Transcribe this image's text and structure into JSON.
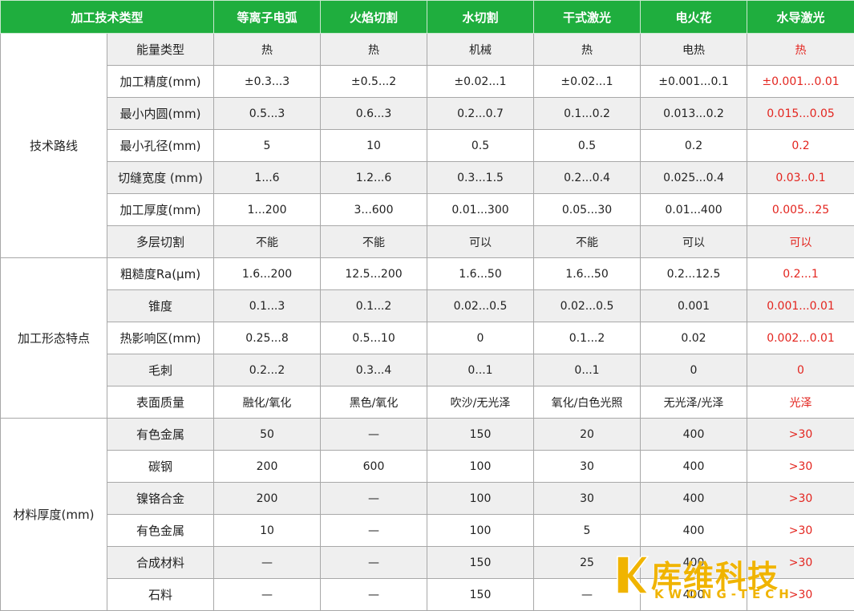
{
  "header": [
    "加工技术类型",
    "等离子电弧",
    "火焰切割",
    "水切割",
    "干式激光",
    "电火花",
    "水导激光"
  ],
  "groups": [
    {
      "label": "技术路线",
      "rows": [
        {
          "name": "能量类型",
          "values": [
            "热",
            "热",
            "机械",
            "热",
            "电热",
            "热"
          ]
        },
        {
          "name": "加工精度(mm)",
          "values": [
            "±0.3...3",
            "±0.5...2",
            "±0.02...1",
            "±0.02...1",
            "±0.001...0.1",
            "±0.001...0.01"
          ]
        },
        {
          "name": "最小内圆(mm)",
          "values": [
            "0.5...3",
            "0.6...3",
            "0.2...0.7",
            "0.1...0.2",
            "0.013...0.2",
            "0.015...0.05"
          ]
        },
        {
          "name": "最小孔径(mm)",
          "values": [
            "5",
            "10",
            "0.5",
            "0.5",
            "0.2",
            "0.2"
          ]
        },
        {
          "name": "切缝宽度  (mm)",
          "values": [
            "1...6",
            "1.2...6",
            "0.3...1.5",
            "0.2...0.4",
            "0.025...0.4",
            "0.03..0.1"
          ]
        },
        {
          "name": "加工厚度(mm)",
          "values": [
            "1...200",
            "3...600",
            "0.01...300",
            "0.05...30",
            "0.01...400",
            "0.005...25"
          ]
        },
        {
          "name": "多层切割",
          "values": [
            "不能",
            "不能",
            "可以",
            "不能",
            "可以",
            "可以"
          ]
        }
      ]
    },
    {
      "label": "加工形态特点",
      "rows": [
        {
          "name": "粗糙度Ra(μm)",
          "values": [
            "1.6...200",
            "12.5...200",
            "1.6...50",
            "1.6...50",
            "0.2...12.5",
            "0.2...1"
          ]
        },
        {
          "name": "锥度",
          "values": [
            "0.1...3",
            "0.1...2",
            "0.02...0.5",
            "0.02...0.5",
            "0.001",
            "0.001...0.01"
          ]
        },
        {
          "name": "热影响区(mm)",
          "values": [
            "0.25...8",
            "0.5...10",
            "0",
            "0.1...2",
            "0.02",
            "0.002...0.01"
          ]
        },
        {
          "name": "毛刺",
          "values": [
            "0.2...2",
            "0.3...4",
            "0...1",
            "0...1",
            "0",
            "0"
          ]
        },
        {
          "name": "表面质量",
          "values": [
            "融化/氧化",
            "黑色/氧化",
            "吹沙/无光泽",
            "氧化/白色光照",
            "无光泽/光泽",
            "光泽"
          ]
        }
      ]
    },
    {
      "label": "材料厚度(mm)",
      "rows": [
        {
          "name": "有色金属",
          "values": [
            "50",
            "—",
            "150",
            "20",
            "400",
            ">30"
          ]
        },
        {
          "name": "碳钢",
          "values": [
            "200",
            "600",
            "100",
            "30",
            "400",
            ">30"
          ]
        },
        {
          "name": "镍铬合金",
          "values": [
            "200",
            "—",
            "100",
            "30",
            "400",
            ">30"
          ]
        },
        {
          "name": "有色金属",
          "values": [
            "10",
            "—",
            "100",
            "5",
            "400",
            ">30"
          ]
        },
        {
          "name": "合成材料",
          "values": [
            "—",
            "—",
            "150",
            "25",
            "400",
            ">30"
          ]
        },
        {
          "name": "石料",
          "values": [
            "—",
            "—",
            "150",
            "—",
            "400",
            ">30"
          ]
        }
      ]
    }
  ],
  "logo": {
    "cn": "库维科技",
    "en": "KWONG-TECH"
  },
  "colors": {
    "header_bg": "#1fae3e",
    "highlight_text": "#e3251f",
    "alt_row_bg": "#efefef",
    "logo": "#f0b400"
  }
}
